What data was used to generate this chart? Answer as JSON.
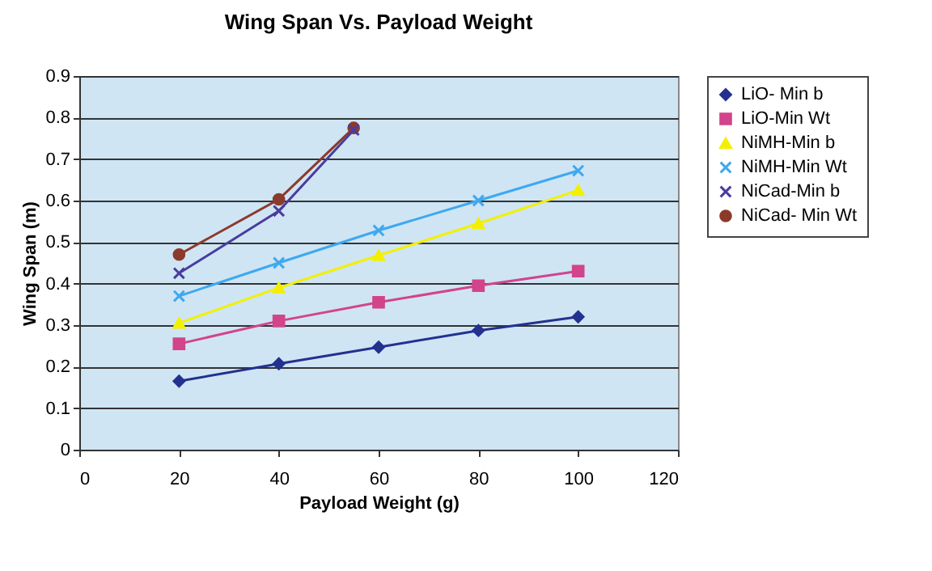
{
  "chart_data": {
    "type": "line",
    "title": "Wing Span Vs. Payload Weight",
    "xlabel": "Payload Weight (g)",
    "ylabel": "Wing Span (m)",
    "x": [
      20,
      40,
      60,
      80,
      100
    ],
    "series": [
      {
        "name": "LiO- Min b",
        "color": "#23318f",
        "marker": "diamond",
        "values": [
          0.165,
          0.207,
          0.247,
          0.287,
          0.32
        ]
      },
      {
        "name": "LiO-Min Wt",
        "color": "#d2448c",
        "marker": "square",
        "values": [
          0.255,
          0.31,
          0.355,
          0.395,
          0.43
        ]
      },
      {
        "name": "NiMH-Min b",
        "color": "#f2f000",
        "marker": "triangle",
        "values": [
          0.305,
          0.39,
          0.468,
          0.545,
          0.625
        ]
      },
      {
        "name": "NiMH-Min Wt",
        "color": "#3ea8f0",
        "marker": "cross",
        "values": [
          0.37,
          0.45,
          0.528,
          0.6,
          0.672
        ]
      },
      {
        "name": "NiCad-Min b",
        "color": "#4a3c9e",
        "marker": "cross",
        "x": [
          20,
          40,
          55
        ],
        "values": [
          0.425,
          0.575,
          0.77
        ]
      },
      {
        "name": "NiCad- Min Wt",
        "color": "#8c3a2c",
        "marker": "circle",
        "x": [
          20,
          40,
          55
        ],
        "values": [
          0.47,
          0.603,
          0.775
        ]
      }
    ],
    "xlim": [
      0,
      120
    ],
    "xticks": [
      0,
      20,
      40,
      60,
      80,
      100,
      120
    ],
    "ylim": [
      0,
      0.9
    ],
    "yticks": [
      0,
      0.1,
      0.2,
      0.3,
      0.4,
      0.5,
      0.6,
      0.7,
      0.8,
      0.9
    ],
    "grid": "y",
    "legend": "right",
    "line_style": "solid"
  }
}
